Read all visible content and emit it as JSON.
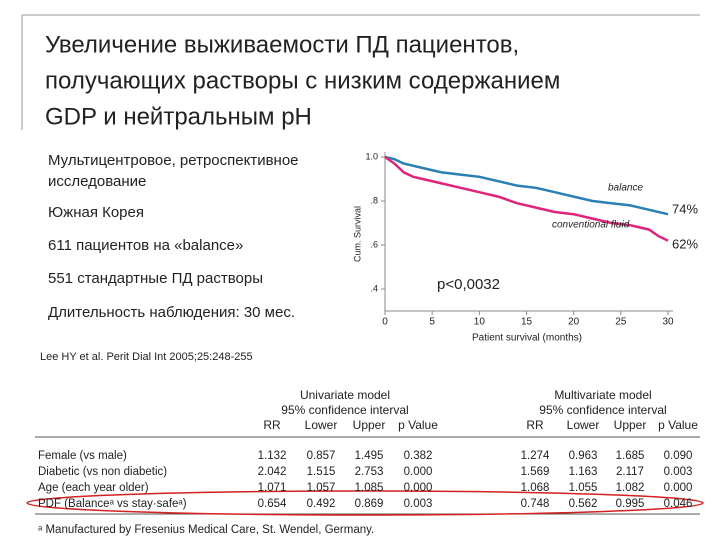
{
  "slide": {
    "title_lines": [
      "Увеличение выживаемости ПД пациентов,",
      "получающих растворы с низким содержанием",
      "GDP и нейтральным pH"
    ],
    "bullets": [
      [
        "Мультицентровое, ретроспективное",
        "исследование"
      ],
      [
        "Южная Корея"
      ],
      [
        "611 пациентов на «balance»"
      ],
      [
        "551 стандартные ПД растворы"
      ],
      [
        "Длительность наблюдения: 30 мес."
      ]
    ],
    "citation": "Lee HY et al. Perit Dial Int 2005;25:248-255"
  },
  "chart_data": {
    "type": "line",
    "xlabel": "Patient survival (months)",
    "ylabel": "Cum. Survival",
    "xlim": [
      0,
      30
    ],
    "xticks": [
      0,
      5,
      10,
      15,
      20,
      25,
      30
    ],
    "ylim": [
      0.3,
      1.0
    ],
    "yticks": [
      {
        "value": 1.0,
        "label": "1.0"
      },
      {
        "value": 0.8,
        "label": ".8"
      },
      {
        "value": 0.6,
        "label": ".6"
      },
      {
        "value": 0.4,
        "label": ".4"
      }
    ],
    "series": [
      {
        "name": "balance",
        "color": "#2a7fb4",
        "x": [
          0,
          1,
          2,
          4,
          6,
          8,
          10,
          12,
          14,
          16,
          18,
          20,
          22,
          24,
          26,
          28,
          30
        ],
        "values": [
          1.0,
          0.99,
          0.97,
          0.95,
          0.93,
          0.92,
          0.91,
          0.89,
          0.87,
          0.86,
          0.84,
          0.82,
          0.8,
          0.79,
          0.78,
          0.76,
          0.74
        ]
      },
      {
        "name": "conventional fluid",
        "color": "#e0247a",
        "x": [
          0,
          1,
          2,
          3,
          4,
          6,
          8,
          10,
          12,
          14,
          16,
          18,
          20,
          22,
          24,
          26,
          28,
          29,
          30
        ],
        "values": [
          1.0,
          0.97,
          0.93,
          0.91,
          0.9,
          0.88,
          0.86,
          0.84,
          0.82,
          0.79,
          0.77,
          0.75,
          0.74,
          0.72,
          0.7,
          0.69,
          0.67,
          0.64,
          0.62
        ]
      }
    ],
    "annotations": [
      "74%",
      "62%",
      "p<0,0032"
    ]
  },
  "table": {
    "groups": [
      {
        "title": "Univariate model",
        "subtitle": "95% confidence interval"
      },
      {
        "title": "Multivariate model",
        "subtitle": "95% confidence interval"
      }
    ],
    "columns": [
      "RR",
      "Lower",
      "Upper",
      "p Value",
      "RR",
      "Lower",
      "Upper",
      "p Value"
    ],
    "rows": [
      {
        "label": "Female (vs male)",
        "cells": [
          "1.132",
          "0.857",
          "1.495",
          "0.382",
          "1.274",
          "0.963",
          "1.685",
          "0.090"
        ]
      },
      {
        "label": "Diabetic (vs non diabetic)",
        "cells": [
          "2.042",
          "1.515",
          "2.753",
          "0.000",
          "1.569",
          "1.163",
          "2.117",
          "0.003"
        ]
      },
      {
        "label": "Age (each year older)",
        "cells": [
          "1.071",
          "1.057",
          "1.085",
          "0.000",
          "1.068",
          "1.055",
          "1.082",
          "0.000"
        ]
      },
      {
        "label": "PDF (Balanceᵃ vs stay·safeᵃ)",
        "cells": [
          "0.654",
          "0.492",
          "0.869",
          "0.003",
          "0.748",
          "0.562",
          "0.995",
          "0.046"
        ]
      }
    ],
    "footnote": "ᵃ Manufactured by Fresenius Medical Care, St. Wendel, Germany."
  }
}
